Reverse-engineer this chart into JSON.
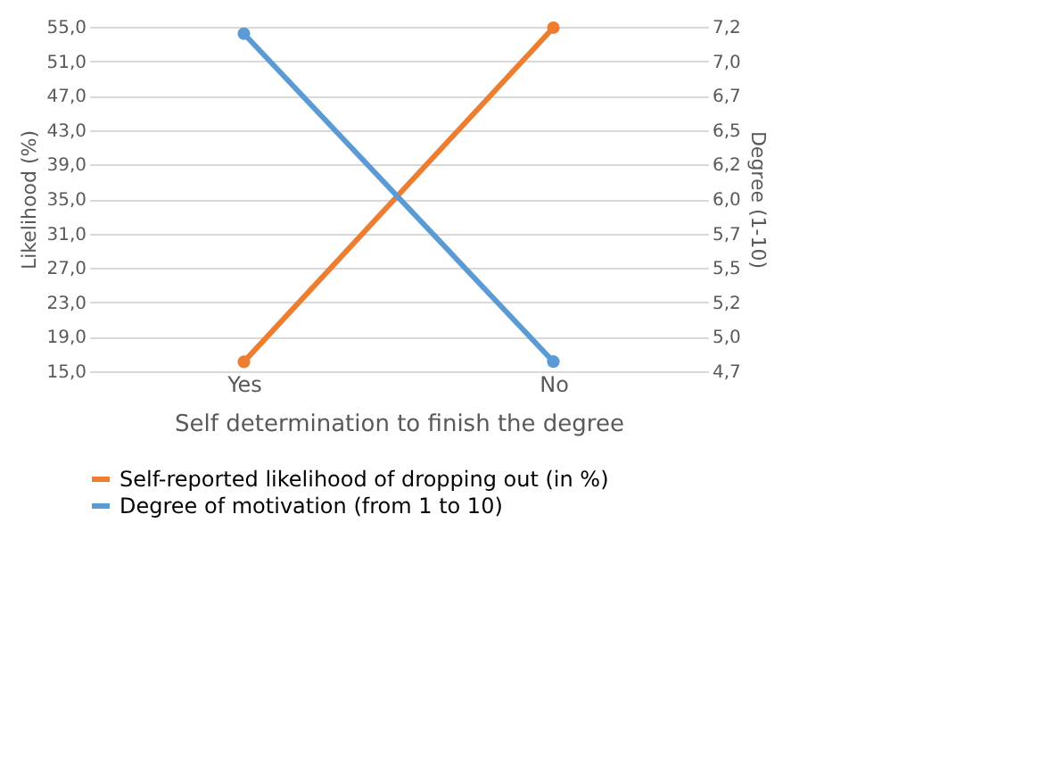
{
  "chart_data": {
    "type": "line",
    "xlabel": "Self determination to finish the degree",
    "ylabel": "Likelihood (%)",
    "y2label": "Degree  (1-10)",
    "categories": [
      "Yes",
      "No"
    ],
    "series": [
      {
        "name": "Self-reported likelihood of dropping out (in %)",
        "color": "#ed7d31",
        "values": [
          16.1,
          54.9
        ]
      },
      {
        "name": "Degree of motivation (from 1 to 10)",
        "color": "#5b9bd5",
        "values": [
          7.15,
          4.77
        ],
        "axis": "y2"
      }
    ],
    "ylim": [
      15,
      55
    ],
    "yticks": [
      {
        "value": 15,
        "label": "15,0"
      },
      {
        "value": 19,
        "label": "19,0"
      },
      {
        "value": 23,
        "label": "23,0"
      },
      {
        "value": 27,
        "label": "27,0"
      },
      {
        "value": 31,
        "label": "31,0"
      },
      {
        "value": 35,
        "label": "35,0"
      },
      {
        "value": 39,
        "label": "39,0"
      },
      {
        "value": 43,
        "label": "43,0"
      },
      {
        "value": 47,
        "label": "47,0"
      },
      {
        "value": 51,
        "label": "51,0"
      },
      {
        "value": 55,
        "label": "55,0"
      }
    ],
    "y2lim": [
      4.7,
      7.2
    ],
    "y2ticks": [
      {
        "value": 4.7,
        "label": "4,7"
      },
      {
        "value": 4.95,
        "label": "5,0"
      },
      {
        "value": 5.2,
        "label": "5,2"
      },
      {
        "value": 5.45,
        "label": "5,5"
      },
      {
        "value": 5.7,
        "label": "5,7"
      },
      {
        "value": 5.95,
        "label": "6,0"
      },
      {
        "value": 6.2,
        "label": "6,2"
      },
      {
        "value": 6.45,
        "label": "6,5"
      },
      {
        "value": 6.7,
        "label": "6,7"
      },
      {
        "value": 6.95,
        "label": "7,0"
      },
      {
        "value": 7.2,
        "label": "7,2"
      }
    ],
    "grid": "y",
    "legend": "bottom",
    "marker": "circle",
    "line_style": "solid"
  }
}
